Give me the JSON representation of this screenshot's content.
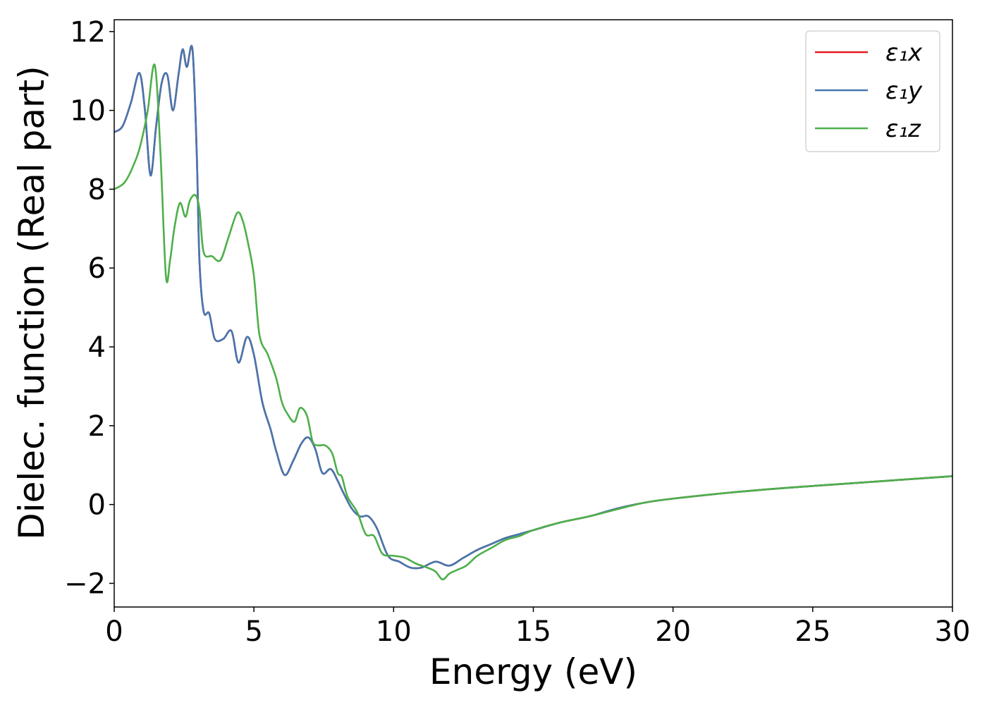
{
  "chart_data": {
    "type": "line",
    "xlabel": "Energy (eV)",
    "ylabel": "Dielec. function (Real part)",
    "xlim": [
      0,
      30
    ],
    "ylim": [
      -2.6,
      12.3
    ],
    "xticks": [
      0,
      5,
      10,
      15,
      20,
      25,
      30
    ],
    "yticks": [
      -2,
      0,
      2,
      4,
      6,
      8,
      10,
      12
    ],
    "xtick_labels": [
      "0",
      "5",
      "10",
      "15",
      "20",
      "25",
      "30"
    ],
    "ytick_labels": [
      "−2",
      "0",
      "2",
      "4",
      "6",
      "8",
      "10",
      "12"
    ],
    "grid": false,
    "legend_position": "top-right",
    "series": [
      {
        "name": "ε₁x",
        "color": "#e41a1c",
        "x": [
          0,
          0.3,
          0.6,
          0.9,
          1.1,
          1.3,
          1.5,
          1.7,
          1.9,
          2.1,
          2.3,
          2.45,
          2.6,
          2.8,
          2.95,
          3.05,
          3.2,
          3.4,
          3.6,
          3.9,
          4.2,
          4.45,
          4.75,
          5.0,
          5.3,
          5.6,
          5.8,
          6.1,
          6.4,
          6.7,
          6.95,
          7.2,
          7.45,
          7.75,
          8.0,
          8.2,
          8.5,
          8.8,
          9.1,
          9.4,
          9.8,
          10.2,
          10.6,
          11.0,
          11.5,
          12.0,
          12.5,
          13.0,
          13.5,
          14.0,
          14.5,
          15.0,
          16.0,
          17.0,
          18.0,
          19.0,
          20.0,
          22.0,
          24.0,
          26.0,
          28.0,
          30.0
        ],
        "y": [
          9.45,
          9.6,
          10.2,
          10.95,
          10.0,
          8.35,
          9.6,
          10.7,
          10.9,
          10.0,
          10.9,
          11.55,
          11.1,
          11.55,
          9.0,
          6.2,
          4.9,
          4.85,
          4.2,
          4.2,
          4.4,
          3.6,
          4.25,
          3.8,
          2.6,
          1.9,
          1.35,
          0.75,
          1.1,
          1.55,
          1.7,
          1.4,
          0.8,
          0.9,
          0.6,
          0.3,
          -0.1,
          -0.3,
          -0.3,
          -0.6,
          -1.3,
          -1.45,
          -1.6,
          -1.6,
          -1.45,
          -1.55,
          -1.35,
          -1.15,
          -1.0,
          -0.85,
          -0.75,
          -0.65,
          -0.45,
          -0.3,
          -0.1,
          0.05,
          0.15,
          0.3,
          0.42,
          0.52,
          0.62,
          0.72
        ]
      },
      {
        "name": "ε₁y",
        "color": "#4477b0",
        "x": [
          0,
          0.3,
          0.6,
          0.9,
          1.1,
          1.3,
          1.5,
          1.7,
          1.9,
          2.1,
          2.3,
          2.45,
          2.6,
          2.8,
          2.95,
          3.05,
          3.2,
          3.4,
          3.6,
          3.9,
          4.2,
          4.45,
          4.75,
          5.0,
          5.3,
          5.6,
          5.8,
          6.1,
          6.4,
          6.7,
          6.95,
          7.2,
          7.45,
          7.75,
          8.0,
          8.2,
          8.5,
          8.8,
          9.1,
          9.4,
          9.8,
          10.2,
          10.6,
          11.0,
          11.5,
          12.0,
          12.5,
          13.0,
          13.5,
          14.0,
          14.5,
          15.0,
          16.0,
          17.0,
          18.0,
          19.0,
          20.0,
          22.0,
          24.0,
          26.0,
          28.0,
          30.0
        ],
        "y": [
          9.45,
          9.6,
          10.2,
          10.95,
          10.0,
          8.35,
          9.6,
          10.7,
          10.9,
          10.0,
          10.9,
          11.55,
          11.1,
          11.55,
          9.0,
          6.2,
          4.9,
          4.85,
          4.2,
          4.2,
          4.4,
          3.6,
          4.25,
          3.8,
          2.6,
          1.9,
          1.35,
          0.75,
          1.1,
          1.55,
          1.7,
          1.4,
          0.8,
          0.9,
          0.6,
          0.3,
          -0.1,
          -0.3,
          -0.3,
          -0.6,
          -1.3,
          -1.45,
          -1.6,
          -1.6,
          -1.45,
          -1.55,
          -1.35,
          -1.15,
          -1.0,
          -0.85,
          -0.75,
          -0.65,
          -0.45,
          -0.3,
          -0.1,
          0.05,
          0.15,
          0.3,
          0.42,
          0.52,
          0.62,
          0.72
        ]
      },
      {
        "name": "ε₁z",
        "color": "#4daf4a",
        "x": [
          0,
          0.4,
          0.8,
          1.0,
          1.2,
          1.45,
          1.65,
          1.85,
          2.0,
          2.15,
          2.35,
          2.55,
          2.7,
          2.9,
          3.05,
          3.2,
          3.5,
          3.8,
          4.1,
          4.4,
          4.6,
          4.8,
          5.0,
          5.2,
          5.5,
          5.8,
          6.0,
          6.2,
          6.45,
          6.65,
          6.9,
          7.1,
          7.3,
          7.55,
          7.8,
          8.0,
          8.15,
          8.35,
          8.7,
          9.0,
          9.3,
          9.6,
          10.0,
          10.4,
          10.8,
          11.2,
          11.5,
          11.75,
          12.0,
          12.3,
          12.6,
          13.0,
          13.5,
          14.0,
          14.5,
          15.0,
          16.0,
          17.0,
          18.0,
          19.0,
          20.0,
          22.0,
          24.0,
          26.0,
          28.0,
          30.0
        ],
        "y": [
          8.0,
          8.2,
          8.8,
          9.3,
          10.0,
          11.15,
          9.0,
          5.8,
          6.2,
          7.0,
          7.65,
          7.3,
          7.7,
          7.85,
          7.5,
          6.4,
          6.3,
          6.2,
          6.8,
          7.4,
          7.2,
          6.6,
          5.8,
          4.3,
          3.8,
          3.2,
          2.6,
          2.3,
          2.1,
          2.45,
          2.25,
          1.6,
          1.5,
          1.5,
          1.3,
          0.8,
          0.7,
          0.2,
          -0.2,
          -0.75,
          -0.8,
          -1.25,
          -1.3,
          -1.35,
          -1.5,
          -1.6,
          -1.7,
          -1.9,
          -1.75,
          -1.65,
          -1.55,
          -1.3,
          -1.1,
          -0.9,
          -0.8,
          -0.65,
          -0.45,
          -0.3,
          -0.12,
          0.05,
          0.15,
          0.3,
          0.42,
          0.52,
          0.62,
          0.72
        ]
      }
    ]
  }
}
